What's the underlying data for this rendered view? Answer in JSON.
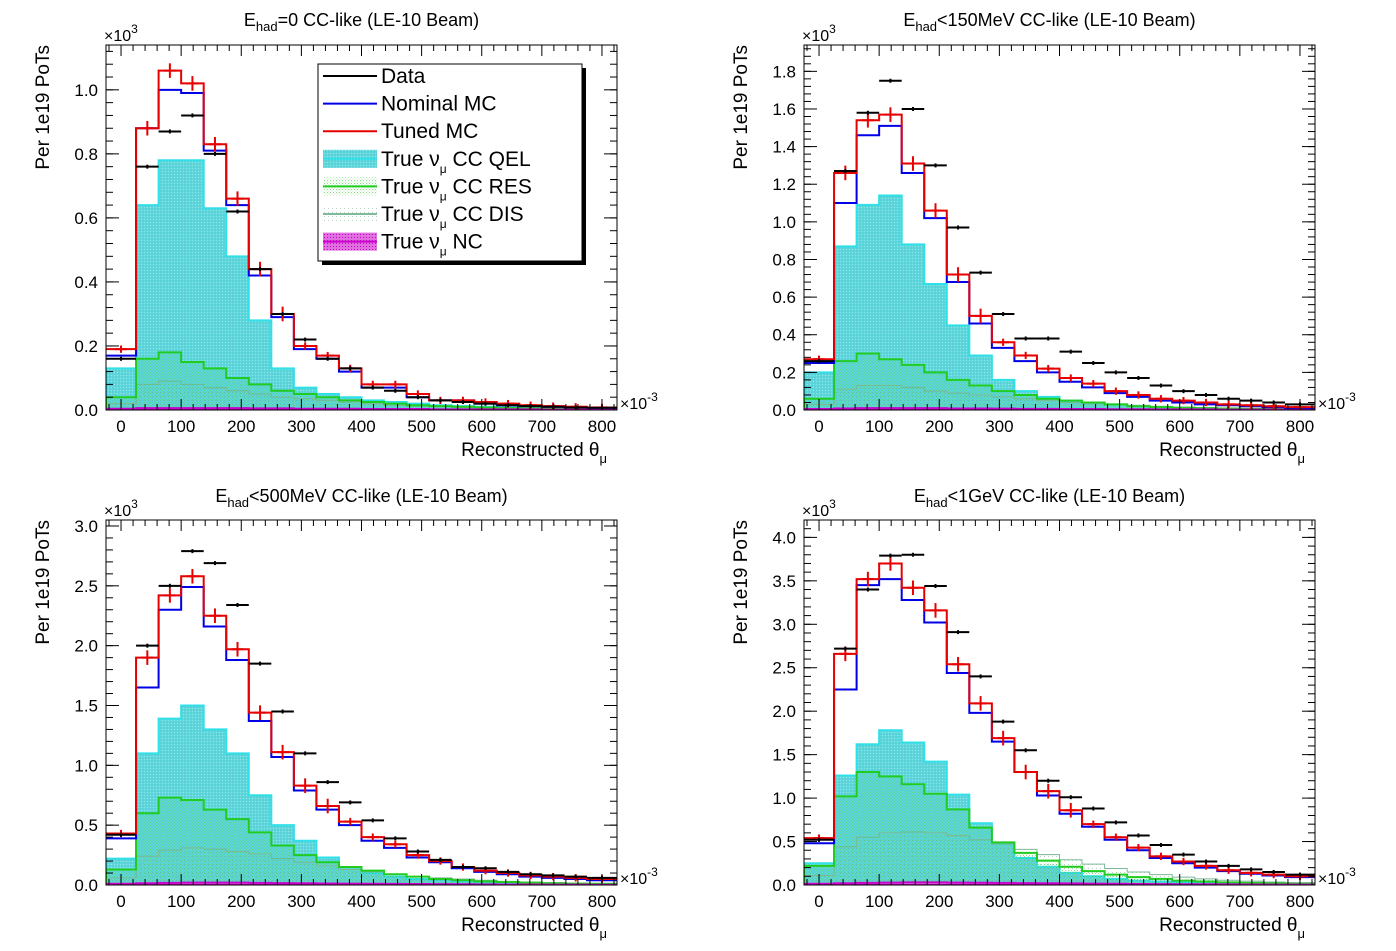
{
  "common": {
    "ylabel": "Per 1e19 PoTs",
    "xlabel_main": "Reconstructed θ",
    "xlabel_sub": "μ",
    "y_multiplier": "×10",
    "y_multiplier_exp": "3",
    "x_multiplier": "×10",
    "x_multiplier_exp": "-3",
    "x_ticks": [
      0,
      100,
      200,
      300,
      400,
      500,
      600,
      700,
      800
    ]
  },
  "legend": {
    "entries": [
      {
        "key": "data",
        "text": "Data",
        "sub": "",
        "tail": ""
      },
      {
        "key": "nominal",
        "text": "Nominal MC",
        "sub": "",
        "tail": ""
      },
      {
        "key": "tuned",
        "text": "Tuned MC",
        "sub": "",
        "tail": ""
      },
      {
        "key": "qel",
        "text": "True ν",
        "sub": "μ",
        "tail": " CC QEL"
      },
      {
        "key": "res",
        "text": "True ν",
        "sub": "μ",
        "tail": " CC RES"
      },
      {
        "key": "dis",
        "text": "True ν",
        "sub": "μ",
        "tail": " CC DIS"
      },
      {
        "key": "nc",
        "text": "True ν",
        "sub": "μ",
        "tail": " NC"
      }
    ]
  },
  "colors": {
    "data": "#000000",
    "nominal": "#0000e6",
    "tuned": "#e60000",
    "qel_line": "#30e0e8",
    "qel_fill": "#5fd8dc",
    "res": "#20cc20",
    "dis": "#7fb89a",
    "nc": "#cc00cc"
  },
  "chart_data": [
    {
      "type": "histogram",
      "title": {
        "prefix": "E",
        "sub": "had",
        "suffix": "=0 CC-like (LE-10 Beam)"
      },
      "x_unit_scale": "×10^-3",
      "y_unit_scale": "×10^3",
      "xlim": [
        -25,
        825
      ],
      "ylim": [
        0,
        1.14
      ],
      "y_ticks": [
        0.0,
        0.2,
        0.4,
        0.6,
        0.8,
        1.0
      ],
      "bin_edges": [
        -25,
        25,
        62.5,
        100,
        137.5,
        175,
        212.5,
        250,
        287.5,
        325,
        362.5,
        400,
        437.5,
        475,
        512.5,
        550,
        587.5,
        625,
        662.5,
        700,
        737.5,
        775,
        825
      ],
      "data": [
        0.16,
        0.76,
        0.87,
        0.92,
        0.8,
        0.62,
        0.44,
        0.3,
        0.22,
        0.16,
        0.13,
        0.07,
        0.06,
        0.04,
        0.03,
        0.025,
        0.02,
        0.015,
        0.012,
        0.01,
        0.008,
        0.007
      ],
      "nominal": [
        0.17,
        0.88,
        1.0,
        0.99,
        0.81,
        0.64,
        0.42,
        0.29,
        0.19,
        0.16,
        0.12,
        0.07,
        0.07,
        0.04,
        0.03,
        0.03,
        0.02,
        0.015,
        0.012,
        0.01,
        0.008,
        0.007
      ],
      "tuned": [
        0.19,
        0.88,
        1.06,
        1.02,
        0.83,
        0.66,
        0.44,
        0.3,
        0.2,
        0.17,
        0.13,
        0.08,
        0.08,
        0.05,
        0.03,
        0.03,
        0.025,
        0.02,
        0.015,
        0.012,
        0.01,
        0.008
      ],
      "qel": [
        0.13,
        0.64,
        0.78,
        0.78,
        0.63,
        0.48,
        0.28,
        0.13,
        0.07,
        0.05,
        0.04,
        0.03,
        0.025,
        0.02,
        0.015,
        0.012,
        0.01,
        0.008,
        0.006,
        0.005,
        0.004,
        0.003
      ],
      "res": [
        0.04,
        0.16,
        0.18,
        0.15,
        0.13,
        0.1,
        0.08,
        0.06,
        0.05,
        0.04,
        0.03,
        0.025,
        0.02,
        0.015,
        0.012,
        0.01,
        0.008,
        0.006,
        0.005,
        0.004,
        0.003,
        0.002
      ],
      "dis": [
        0.02,
        0.08,
        0.09,
        0.08,
        0.07,
        0.06,
        0.05,
        0.04,
        0.035,
        0.03,
        0.025,
        0.02,
        0.015,
        0.012,
        0.01,
        0.008,
        0.006,
        0.005,
        0.004,
        0.003,
        0.002,
        0.002
      ],
      "nc": [
        0.004,
        0.006,
        0.006,
        0.006,
        0.006,
        0.006,
        0.005,
        0.005,
        0.004,
        0.004,
        0.004,
        0.003,
        0.003,
        0.003,
        0.002,
        0.002,
        0.002,
        0.002,
        0.002,
        0.001,
        0.001,
        0.001
      ],
      "legend": true
    },
    {
      "type": "histogram",
      "title": {
        "prefix": "E",
        "sub": "had",
        "suffix": "<150MeV CC-like (LE-10 Beam)"
      },
      "x_unit_scale": "×10^-3",
      "y_unit_scale": "×10^3",
      "xlim": [
        -25,
        825
      ],
      "ylim": [
        0,
        1.94
      ],
      "y_ticks": [
        0.0,
        0.2,
        0.4,
        0.6,
        0.8,
        1.0,
        1.2,
        1.4,
        1.6,
        1.8
      ],
      "bin_edges": [
        -25,
        25,
        62.5,
        100,
        137.5,
        175,
        212.5,
        250,
        287.5,
        325,
        362.5,
        400,
        437.5,
        475,
        512.5,
        550,
        587.5,
        625,
        662.5,
        700,
        737.5,
        775,
        825
      ],
      "data": [
        0.26,
        1.27,
        1.58,
        1.75,
        1.6,
        1.3,
        0.97,
        0.73,
        0.51,
        0.38,
        0.38,
        0.31,
        0.25,
        0.2,
        0.17,
        0.13,
        0.1,
        0.08,
        0.06,
        0.05,
        0.04,
        0.03
      ],
      "nominal": [
        0.25,
        1.1,
        1.46,
        1.51,
        1.26,
        1.02,
        0.68,
        0.46,
        0.33,
        0.26,
        0.2,
        0.15,
        0.12,
        0.09,
        0.07,
        0.05,
        0.04,
        0.03,
        0.025,
        0.02,
        0.015,
        0.01
      ],
      "tuned": [
        0.27,
        1.26,
        1.54,
        1.57,
        1.31,
        1.06,
        0.72,
        0.5,
        0.36,
        0.29,
        0.22,
        0.17,
        0.14,
        0.1,
        0.08,
        0.06,
        0.05,
        0.04,
        0.03,
        0.025,
        0.02,
        0.015
      ],
      "qel": [
        0.2,
        0.87,
        1.09,
        1.14,
        0.88,
        0.67,
        0.45,
        0.29,
        0.16,
        0.1,
        0.07,
        0.05,
        0.04,
        0.03,
        0.02,
        0.015,
        0.01,
        0.008,
        0.006,
        0.005,
        0.004,
        0.003
      ],
      "res": [
        0.06,
        0.26,
        0.3,
        0.27,
        0.24,
        0.2,
        0.16,
        0.13,
        0.1,
        0.08,
        0.06,
        0.05,
        0.04,
        0.03,
        0.02,
        0.015,
        0.012,
        0.01,
        0.008,
        0.006,
        0.005,
        0.004
      ],
      "dis": [
        0.03,
        0.11,
        0.13,
        0.13,
        0.12,
        0.1,
        0.09,
        0.08,
        0.07,
        0.06,
        0.05,
        0.04,
        0.035,
        0.03,
        0.025,
        0.02,
        0.015,
        0.012,
        0.01,
        0.008,
        0.006,
        0.005
      ],
      "nc": [
        0.005,
        0.008,
        0.01,
        0.01,
        0.01,
        0.01,
        0.008,
        0.008,
        0.007,
        0.006,
        0.006,
        0.005,
        0.005,
        0.004,
        0.004,
        0.003,
        0.003,
        0.003,
        0.002,
        0.002,
        0.002,
        0.002
      ],
      "legend": false
    },
    {
      "type": "histogram",
      "title": {
        "prefix": "E",
        "sub": "had",
        "suffix": "<500MeV CC-like (LE-10 Beam)"
      },
      "x_unit_scale": "×10^-3",
      "y_unit_scale": "×10^3",
      "xlim": [
        -25,
        825
      ],
      "ylim": [
        0,
        3.05
      ],
      "y_ticks": [
        0.0,
        0.5,
        1.0,
        1.5,
        2.0,
        2.5,
        3.0
      ],
      "bin_edges": [
        -25,
        25,
        62.5,
        100,
        137.5,
        175,
        212.5,
        250,
        287.5,
        325,
        362.5,
        400,
        437.5,
        475,
        512.5,
        550,
        587.5,
        625,
        662.5,
        700,
        737.5,
        775,
        825
      ],
      "data": [
        0.42,
        2.0,
        2.5,
        2.79,
        2.69,
        2.34,
        1.85,
        1.45,
        1.1,
        0.86,
        0.69,
        0.54,
        0.39,
        0.28,
        0.21,
        0.15,
        0.14,
        0.11,
        0.09,
        0.08,
        0.07,
        0.06
      ],
      "nominal": [
        0.39,
        1.65,
        2.3,
        2.49,
        2.16,
        1.88,
        1.37,
        1.07,
        0.79,
        0.63,
        0.5,
        0.37,
        0.31,
        0.23,
        0.19,
        0.14,
        0.11,
        0.09,
        0.07,
        0.06,
        0.05,
        0.04
      ],
      "tuned": [
        0.43,
        1.9,
        2.42,
        2.58,
        2.25,
        1.97,
        1.44,
        1.11,
        0.83,
        0.66,
        0.53,
        0.4,
        0.34,
        0.25,
        0.2,
        0.15,
        0.12,
        0.1,
        0.08,
        0.07,
        0.06,
        0.05
      ],
      "qel": [
        0.22,
        1.1,
        1.39,
        1.5,
        1.3,
        1.1,
        0.75,
        0.5,
        0.37,
        0.23,
        0.15,
        0.1,
        0.07,
        0.05,
        0.04,
        0.03,
        0.02,
        0.015,
        0.01,
        0.008,
        0.006,
        0.005
      ],
      "res": [
        0.13,
        0.6,
        0.73,
        0.71,
        0.63,
        0.55,
        0.44,
        0.33,
        0.25,
        0.19,
        0.15,
        0.12,
        0.09,
        0.07,
        0.05,
        0.04,
        0.03,
        0.025,
        0.02,
        0.015,
        0.012,
        0.01
      ],
      "dis": [
        0.06,
        0.24,
        0.29,
        0.31,
        0.3,
        0.28,
        0.26,
        0.22,
        0.19,
        0.16,
        0.13,
        0.11,
        0.09,
        0.07,
        0.06,
        0.05,
        0.04,
        0.03,
        0.025,
        0.02,
        0.015,
        0.012
      ],
      "nc": [
        0.01,
        0.015,
        0.018,
        0.02,
        0.02,
        0.02,
        0.018,
        0.016,
        0.015,
        0.013,
        0.012,
        0.01,
        0.009,
        0.008,
        0.007,
        0.006,
        0.005,
        0.004,
        0.004,
        0.003,
        0.003,
        0.002
      ],
      "legend": false
    },
    {
      "type": "histogram",
      "title": {
        "prefix": "E",
        "sub": "had",
        "suffix": "<1GeV CC-like (LE-10 Beam)"
      },
      "x_unit_scale": "×10^-3",
      "y_unit_scale": "×10^3",
      "xlim": [
        -25,
        825
      ],
      "ylim": [
        0,
        4.2
      ],
      "y_ticks": [
        0.0,
        0.5,
        1.0,
        1.5,
        2.0,
        2.5,
        3.0,
        3.5,
        4.0
      ],
      "bin_edges": [
        -25,
        25,
        62.5,
        100,
        137.5,
        175,
        212.5,
        250,
        287.5,
        325,
        362.5,
        400,
        437.5,
        475,
        512.5,
        550,
        587.5,
        625,
        662.5,
        700,
        737.5,
        775,
        825
      ],
      "data": [
        0.52,
        2.72,
        3.4,
        3.79,
        3.8,
        3.44,
        2.91,
        2.4,
        1.88,
        1.55,
        1.2,
        1.01,
        0.88,
        0.72,
        0.57,
        0.46,
        0.35,
        0.27,
        0.22,
        0.18,
        0.15,
        0.12
      ],
      "nominal": [
        0.48,
        2.25,
        3.45,
        3.52,
        3.28,
        3.02,
        2.44,
        1.98,
        1.65,
        1.3,
        1.03,
        0.82,
        0.67,
        0.52,
        0.4,
        0.31,
        0.25,
        0.2,
        0.16,
        0.13,
        0.11,
        0.09
      ],
      "tuned": [
        0.54,
        2.66,
        3.52,
        3.7,
        3.42,
        3.16,
        2.54,
        2.09,
        1.69,
        1.3,
        1.08,
        0.86,
        0.7,
        0.55,
        0.43,
        0.33,
        0.27,
        0.22,
        0.17,
        0.14,
        0.12,
        0.1
      ],
      "qel": [
        0.25,
        1.26,
        1.62,
        1.78,
        1.64,
        1.42,
        1.04,
        0.71,
        0.47,
        0.31,
        0.21,
        0.14,
        0.1,
        0.07,
        0.05,
        0.04,
        0.03,
        0.02,
        0.015,
        0.01,
        0.008,
        0.006
      ],
      "res": [
        0.22,
        1.02,
        1.3,
        1.25,
        1.16,
        1.05,
        0.87,
        0.66,
        0.49,
        0.37,
        0.28,
        0.21,
        0.16,
        0.12,
        0.09,
        0.07,
        0.05,
        0.04,
        0.03,
        0.025,
        0.02,
        0.015
      ],
      "dis": [
        0.11,
        0.44,
        0.55,
        0.6,
        0.61,
        0.6,
        0.57,
        0.52,
        0.47,
        0.41,
        0.35,
        0.29,
        0.24,
        0.19,
        0.15,
        0.12,
        0.09,
        0.07,
        0.055,
        0.045,
        0.035,
        0.028
      ],
      "nc": [
        0.015,
        0.02,
        0.025,
        0.028,
        0.03,
        0.03,
        0.028,
        0.026,
        0.024,
        0.022,
        0.02,
        0.018,
        0.016,
        0.014,
        0.012,
        0.01,
        0.009,
        0.008,
        0.007,
        0.006,
        0.005,
        0.004
      ],
      "legend": false
    }
  ]
}
